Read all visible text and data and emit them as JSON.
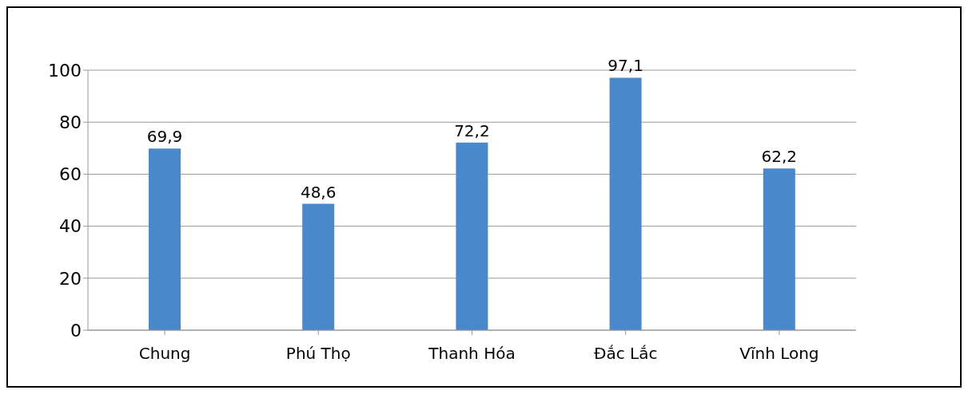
{
  "chart_data": {
    "type": "bar",
    "categories": [
      "Chung",
      "Phú Thọ",
      "Thanh Hóa",
      "Đắc Lắc",
      "Vĩnh Long"
    ],
    "values": [
      69.9,
      48.6,
      72.2,
      97.1,
      62.2
    ],
    "value_labels": [
      "69,9",
      "48,6",
      "72,2",
      "97,1",
      "62,2"
    ],
    "color": "#4a87cb",
    "ylim": [
      0,
      100
    ],
    "yticks": [
      0,
      20,
      40,
      60,
      80,
      100
    ],
    "grid": "y"
  }
}
